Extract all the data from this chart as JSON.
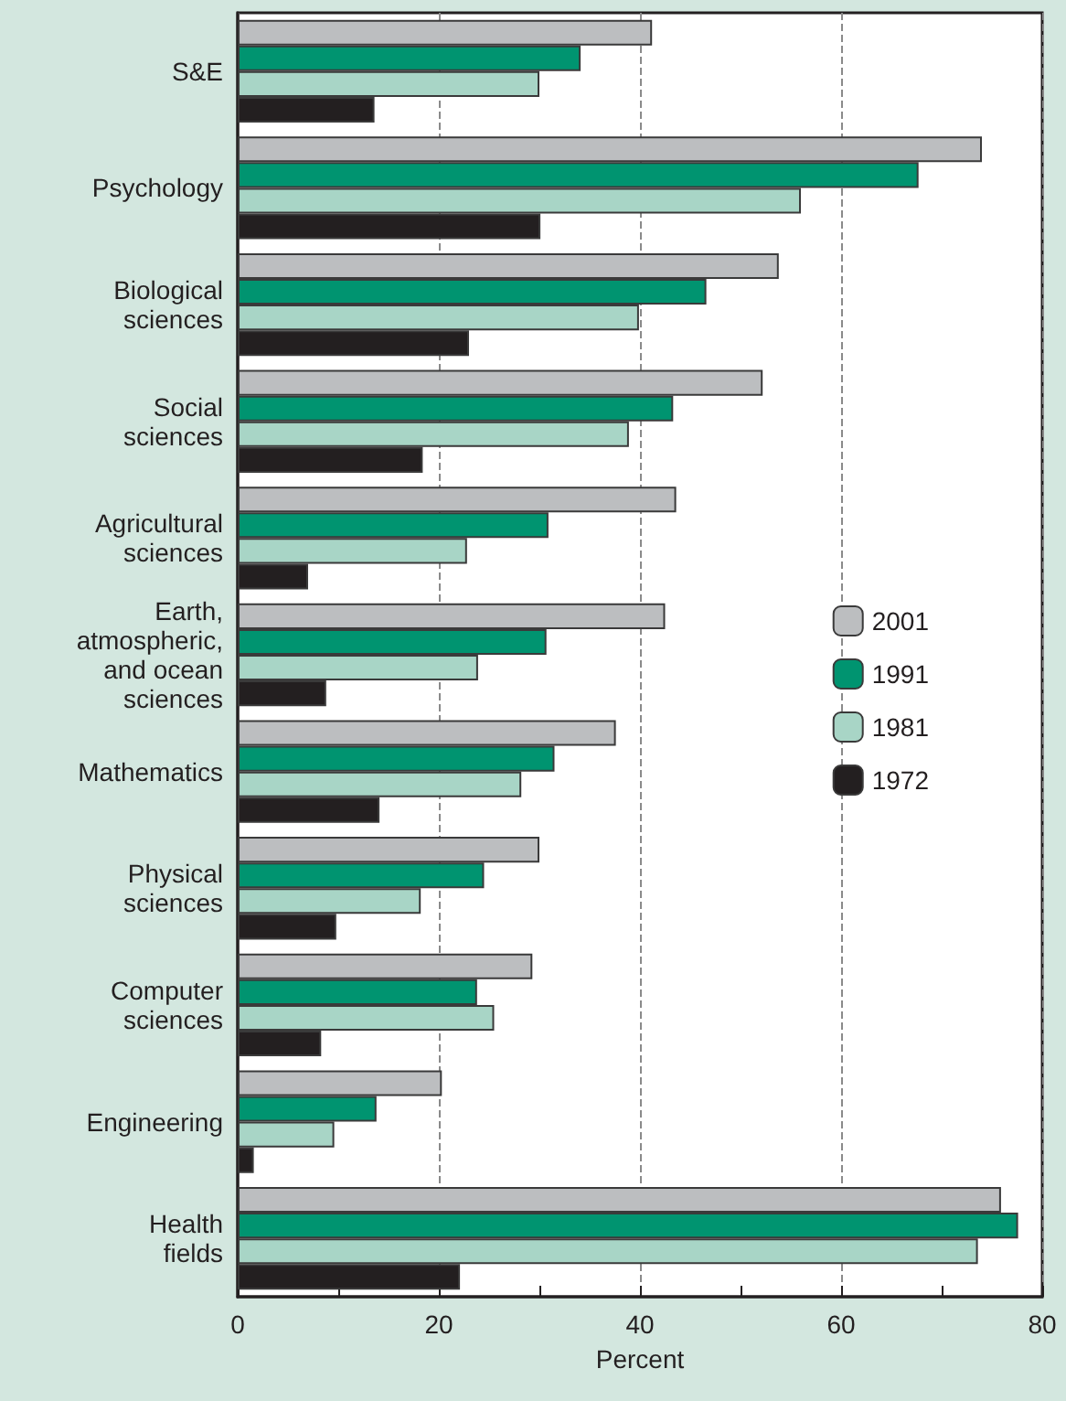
{
  "chart_data": {
    "type": "bar",
    "orientation": "horizontal",
    "xlabel": "Percent",
    "categories": [
      "S&E",
      "Psychology",
      "Biological\nsciences",
      "Social\nsciences",
      "Agricultural\nsciences",
      "Earth,\natmospheric,\nand ocean\nsciences",
      "Mathematics",
      "Physical\nsciences",
      "Computer\nsciences",
      "Engineering",
      "Health\nfields"
    ],
    "series": [
      {
        "name": "2001",
        "color": "#bcbec0",
        "values": [
          41.2,
          74.0,
          53.8,
          52.2,
          43.6,
          42.5,
          37.6,
          30.0,
          29.3,
          20.3,
          75.9
        ]
      },
      {
        "name": "1991",
        "color": "#009470",
        "values": [
          34.1,
          67.7,
          46.6,
          43.3,
          30.9,
          30.7,
          31.5,
          24.5,
          23.8,
          13.8,
          77.6
        ]
      },
      {
        "name": "1981",
        "color": "#a8d5c6",
        "values": [
          30.0,
          56.0,
          39.9,
          38.9,
          22.8,
          23.9,
          28.2,
          18.2,
          25.5,
          9.6,
          73.6
        ]
      },
      {
        "name": "1972",
        "color": "#231f20",
        "values": [
          13.6,
          30.1,
          23.0,
          18.4,
          7.0,
          8.8,
          14.1,
          9.8,
          8.3,
          1.6,
          22.1
        ]
      }
    ],
    "xlim": [
      0,
      80
    ],
    "xticks": [
      0,
      {
        "value": 10,
        "label": null
      },
      20,
      {
        "value": 30,
        "label": null
      },
      40,
      {
        "value": 50,
        "label": null
      },
      60,
      {
        "value": 70,
        "label": null
      },
      80
    ],
    "grid": "x",
    "legend": "right"
  }
}
